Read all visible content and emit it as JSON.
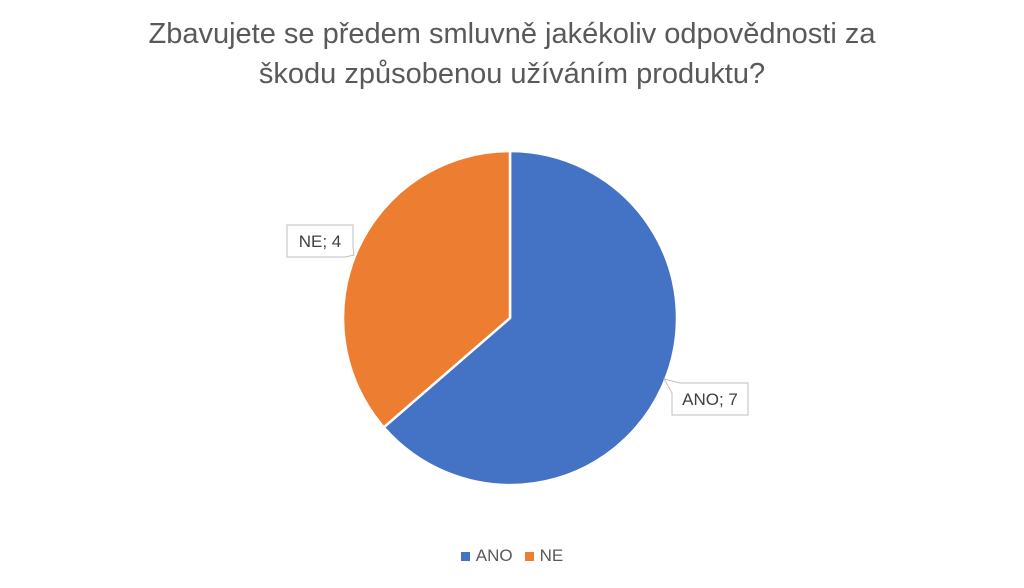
{
  "chart_data": {
    "type": "pie",
    "title_lines": [
      "Zbavujete se předem smluvně jakékoliv odpovědnosti za",
      "škodu způsobenou užíváním produktu?"
    ],
    "categories": [
      "ANO",
      "NE"
    ],
    "values": [
      7,
      4
    ],
    "data_labels": [
      "ANO; 7",
      "NE; 4"
    ],
    "colors": [
      "#4472C4",
      "#ED7D31"
    ],
    "start_angle": "top",
    "direction": "clockwise",
    "legend_position": "bottom"
  }
}
